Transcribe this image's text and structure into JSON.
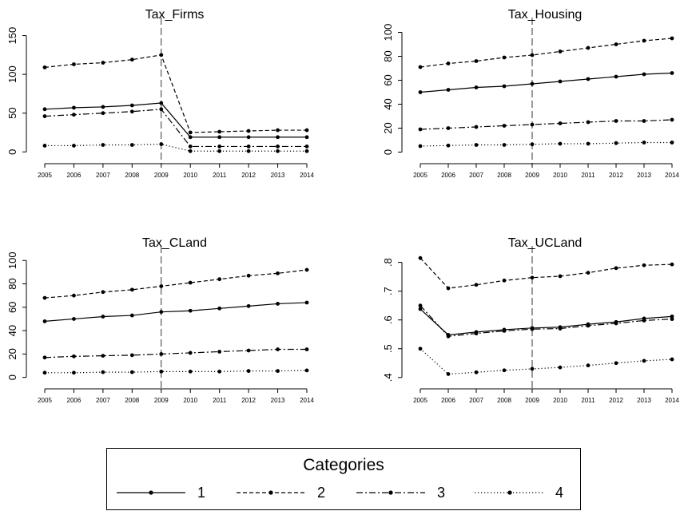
{
  "chart_data": [
    {
      "type": "line",
      "title": "Tax_Firms",
      "x": [
        "2005",
        "2006",
        "2007",
        "2008",
        "2009",
        "2010",
        "2011",
        "2012",
        "2013",
        "2014"
      ],
      "ylim": [
        -8,
        165
      ],
      "yticks": [
        "0",
        "50",
        "100",
        "150"
      ],
      "ytick_values": [
        0,
        50,
        100,
        150
      ],
      "vline": "2009",
      "series": [
        {
          "name": "1",
          "style": "solid",
          "values": [
            55,
            57,
            58,
            60,
            63,
            19,
            19,
            19,
            19,
            19
          ]
        },
        {
          "name": "2",
          "style": "dashed",
          "values": [
            109,
            113,
            115,
            119,
            125,
            25,
            26,
            27,
            28,
            28
          ]
        },
        {
          "name": "3",
          "style": "dashdot",
          "values": [
            46,
            48,
            50,
            52,
            55,
            7,
            7,
            7,
            7,
            7
          ]
        },
        {
          "name": "4",
          "style": "dotted",
          "values": [
            8,
            8,
            9,
            9,
            10,
            1,
            1,
            1,
            1,
            1
          ]
        }
      ]
    },
    {
      "type": "line",
      "title": "Tax_Housing",
      "x": [
        "2005",
        "2006",
        "2007",
        "2008",
        "2009",
        "2010",
        "2011",
        "2012",
        "2013",
        "2014"
      ],
      "ylim": [
        -5,
        107
      ],
      "yticks": [
        "0",
        "20",
        "40",
        "60",
        "80",
        "100"
      ],
      "ytick_values": [
        0,
        20,
        40,
        60,
        80,
        100
      ],
      "vline": "2009",
      "series": [
        {
          "name": "1",
          "style": "solid",
          "values": [
            50,
            52,
            54,
            55,
            57,
            59,
            61,
            63,
            65,
            66
          ]
        },
        {
          "name": "2",
          "style": "dashed",
          "values": [
            71,
            74,
            76,
            79,
            81,
            84,
            87,
            90,
            93,
            95
          ]
        },
        {
          "name": "3",
          "style": "dashdot",
          "values": [
            19,
            20,
            21,
            22,
            23,
            24,
            25,
            26,
            26,
            27
          ]
        },
        {
          "name": "4",
          "style": "dotted",
          "values": [
            5,
            5.5,
            6,
            6,
            6.5,
            7,
            7,
            7.5,
            8,
            8
          ]
        }
      ]
    },
    {
      "type": "line",
      "title": "Tax_CLand",
      "x": [
        "2005",
        "2006",
        "2007",
        "2008",
        "2009",
        "2010",
        "2011",
        "2012",
        "2013",
        "2014"
      ],
      "ylim": [
        -5,
        107
      ],
      "yticks": [
        "0",
        "20",
        "40",
        "60",
        "80",
        "100"
      ],
      "ytick_values": [
        0,
        20,
        40,
        60,
        80,
        100
      ],
      "vline": "2009",
      "series": [
        {
          "name": "1",
          "style": "solid",
          "values": [
            48,
            50,
            52,
            53,
            56,
            57,
            59,
            61,
            63,
            64
          ]
        },
        {
          "name": "2",
          "style": "dashed",
          "values": [
            68,
            70,
            73,
            75,
            78,
            81,
            84,
            87,
            89,
            92
          ]
        },
        {
          "name": "3",
          "style": "dashdot",
          "values": [
            17,
            18,
            18.5,
            19,
            20,
            21,
            22,
            23,
            24,
            24
          ]
        },
        {
          "name": "4",
          "style": "dotted",
          "values": [
            4,
            4,
            4.5,
            4.5,
            5,
            5,
            5,
            5.5,
            5.5,
            6
          ]
        }
      ]
    },
    {
      "type": "line",
      "title": "Tax_UCLand",
      "x": [
        "2005",
        "2006",
        "2007",
        "2008",
        "2009",
        "2010",
        "2011",
        "2012",
        "2013",
        "2014"
      ],
      "ylim": [
        0.38,
        0.835
      ],
      "yticks": [
        ".4",
        ".5",
        ".6",
        ".7",
        ".8"
      ],
      "ytick_values": [
        0.4,
        0.5,
        0.6,
        0.7,
        0.8
      ],
      "vline": "2009",
      "series": [
        {
          "name": "1",
          "style": "solid",
          "values": [
            0.638,
            0.548,
            0.558,
            0.566,
            0.572,
            0.575,
            0.585,
            0.593,
            0.605,
            0.612
          ]
        },
        {
          "name": "2",
          "style": "dashed",
          "values": [
            0.815,
            0.71,
            0.722,
            0.737,
            0.747,
            0.752,
            0.764,
            0.78,
            0.79,
            0.793
          ]
        },
        {
          "name": "3",
          "style": "dashdot",
          "values": [
            0.65,
            0.543,
            0.553,
            0.562,
            0.568,
            0.57,
            0.58,
            0.588,
            0.598,
            0.603
          ]
        },
        {
          "name": "4",
          "style": "dotted",
          "values": [
            0.5,
            0.412,
            0.418,
            0.425,
            0.43,
            0.435,
            0.442,
            0.45,
            0.458,
            0.463
          ]
        }
      ]
    }
  ],
  "legend": {
    "title": "Categories",
    "items": [
      {
        "label": "1",
        "style": "solid"
      },
      {
        "label": "2",
        "style": "dashed"
      },
      {
        "label": "3",
        "style": "dashdot"
      },
      {
        "label": "4",
        "style": "dotted"
      }
    ]
  },
  "colors": {
    "line": "#000000",
    "background": "#ffffff"
  }
}
